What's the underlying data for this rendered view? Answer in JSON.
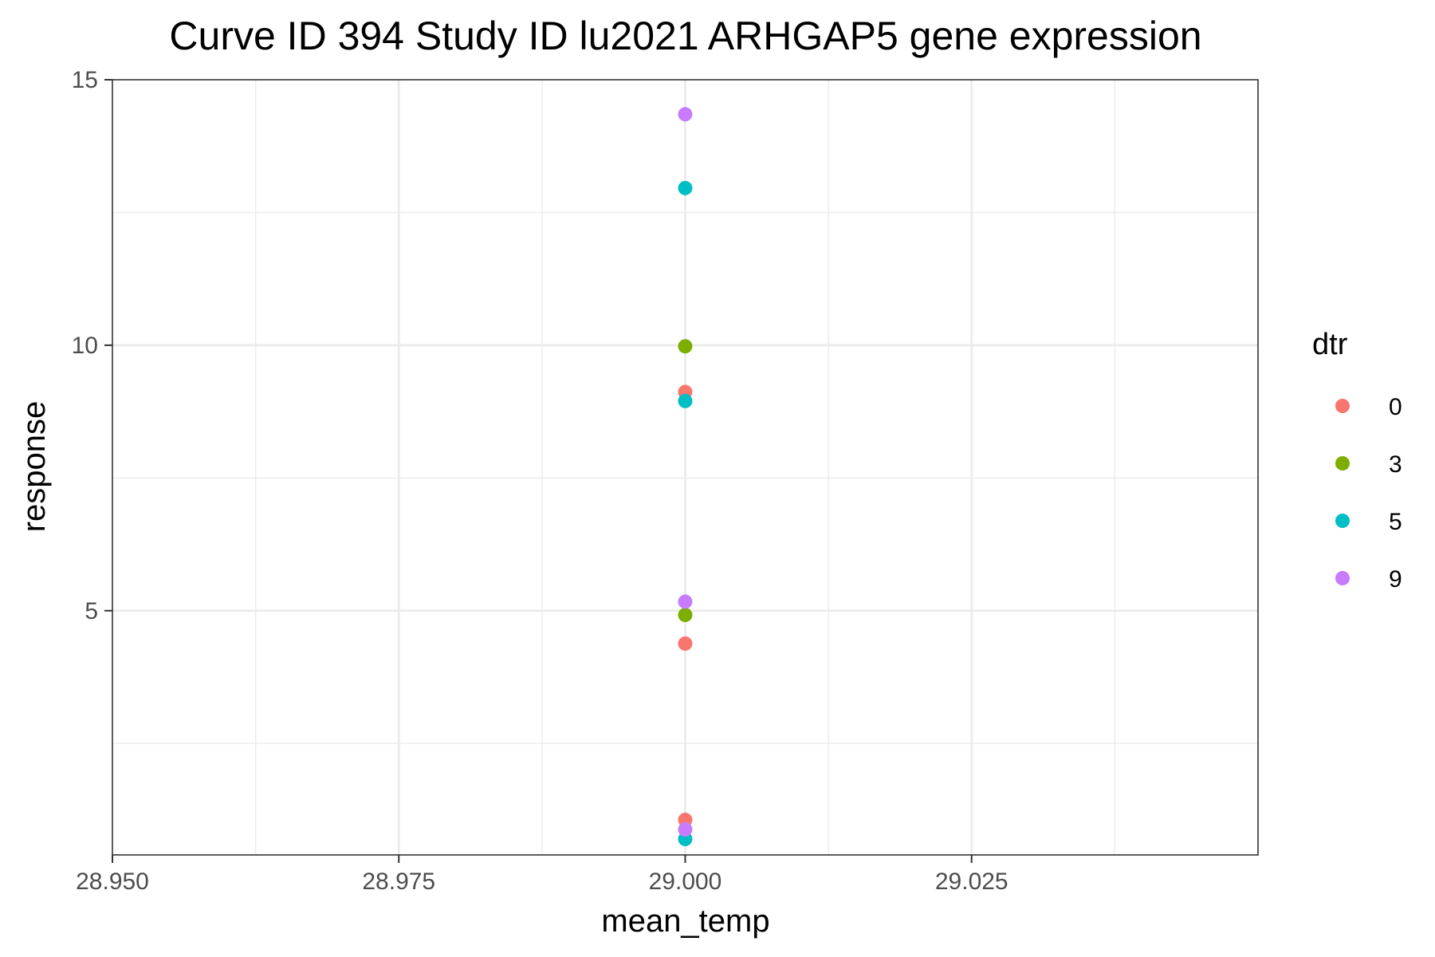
{
  "chart_data": {
    "type": "scatter",
    "title": "Curve ID 394 Study ID lu2021 ARHGAP5 gene expression",
    "xlabel": "mean_temp",
    "ylabel": "response",
    "xlim": [
      28.95,
      29.05
    ],
    "ylim": [
      0.4,
      15
    ],
    "x_ticks": [
      28.95,
      28.975,
      29.0,
      29.025
    ],
    "x_tick_labels": [
      "28.950",
      "28.975",
      "29.000",
      "29.025"
    ],
    "x_minor_ticks": [
      28.9625,
      28.9875,
      29.0125,
      29.0375
    ],
    "y_ticks": [
      5,
      10,
      15
    ],
    "y_tick_labels": [
      "5",
      "10",
      "15"
    ],
    "y_minor_ticks": [
      2.5,
      7.5,
      12.5
    ],
    "grid": true,
    "legend": {
      "title": "dtr",
      "placement": "right"
    },
    "series": [
      {
        "name": "0",
        "color": "#F8766D",
        "points": [
          {
            "x": 29.0,
            "y": 9.12
          },
          {
            "x": 29.0,
            "y": 4.38
          },
          {
            "x": 29.0,
            "y": 1.06
          }
        ]
      },
      {
        "name": "3",
        "color": "#7CAE00",
        "points": [
          {
            "x": 29.0,
            "y": 9.98
          },
          {
            "x": 29.0,
            "y": 4.92
          }
        ]
      },
      {
        "name": "5",
        "color": "#00BFC4",
        "points": [
          {
            "x": 29.0,
            "y": 12.96
          },
          {
            "x": 29.0,
            "y": 8.95
          },
          {
            "x": 29.0,
            "y": 0.7
          }
        ]
      },
      {
        "name": "9",
        "color": "#C77CFF",
        "points": [
          {
            "x": 29.0,
            "y": 14.35
          },
          {
            "x": 29.0,
            "y": 5.17
          },
          {
            "x": 29.0,
            "y": 0.88
          }
        ]
      }
    ]
  }
}
